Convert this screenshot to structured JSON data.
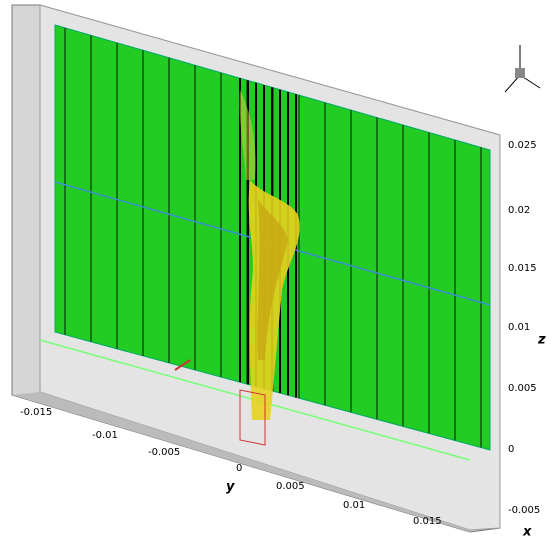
{
  "z_axis": {
    "label": "z",
    "ticks": [
      "0.025",
      "0.02",
      "0.015",
      "0.01",
      "0.005",
      "0",
      "-0.005"
    ]
  },
  "y_axis": {
    "label": "y",
    "ticks": [
      "-0.015",
      "-0.01",
      "-0.005",
      "0",
      "0.005",
      "0.01",
      "0.015"
    ]
  },
  "x_axis": {
    "label": "x"
  }
}
